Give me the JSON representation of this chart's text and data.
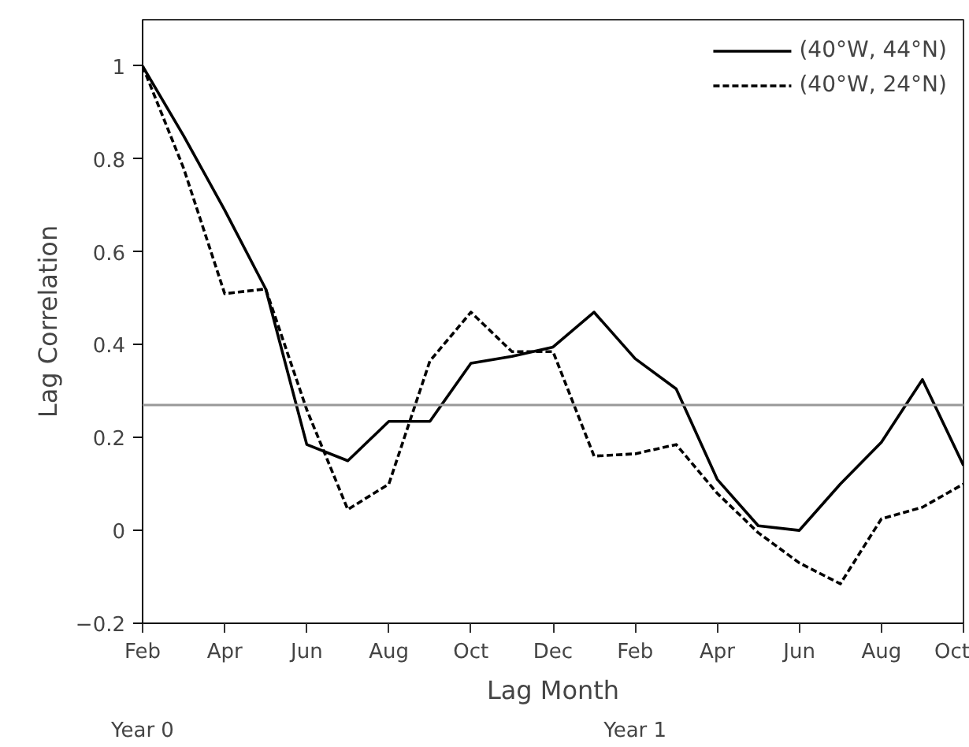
{
  "chart_data": {
    "type": "line",
    "xlabel": "Lag Month",
    "ylabel": "Lag Correlation",
    "categories": [
      "Feb",
      null,
      "Apr",
      null,
      "Jun",
      null,
      "Aug",
      null,
      "Oct",
      null,
      "Dec",
      null,
      "Feb",
      null,
      "Apr",
      null,
      "Jun",
      null,
      "Aug",
      null,
      "Oct"
    ],
    "series": [
      {
        "name": "(40°W, 44°N)",
        "color": "#000000",
        "line_style": "solid",
        "values": [
          1.0,
          0.85,
          0.69,
          0.52,
          0.185,
          0.15,
          0.235,
          0.235,
          0.36,
          0.375,
          0.395,
          0.47,
          0.37,
          0.305,
          0.11,
          0.01,
          0.0,
          0.1,
          0.19,
          0.325,
          0.14
        ]
      },
      {
        "name": "(40°W, 24°N)",
        "color": "#000000",
        "line_style": "dashed",
        "values": [
          1.0,
          0.78,
          0.51,
          0.52,
          0.26,
          0.045,
          0.1,
          0.365,
          0.47,
          0.385,
          0.385,
          0.16,
          0.165,
          0.185,
          0.08,
          -0.005,
          -0.07,
          -0.115,
          0.025,
          0.05,
          0.1
        ]
      }
    ],
    "ylim": [
      -0.2,
      1.1
    ],
    "yticks": [
      {
        "value": -0.2,
        "label": "−0.2"
      },
      0,
      0.2,
      0.4,
      0.6,
      0.8,
      1
    ],
    "ref_lines": [
      {
        "axis": "y",
        "value": 0.27,
        "color": "#999999"
      }
    ],
    "annotations": [
      "Year 0",
      "Year 1"
    ],
    "legend": "top right",
    "grid": false,
    "marker": "none"
  }
}
